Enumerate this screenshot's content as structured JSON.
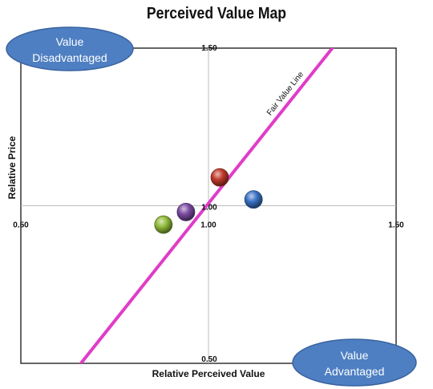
{
  "chart_data": {
    "type": "scatter",
    "title": "Perceived Value Map",
    "xlabel": "Relative Perceived Value",
    "ylabel": "Relative Price",
    "xlim": [
      0.5,
      1.5
    ],
    "ylim": [
      0.5,
      1.5
    ],
    "x_ticks": [
      "0.50",
      "1.00",
      "1.50"
    ],
    "y_ticks": [
      "0.50",
      "1.00",
      "1.50"
    ],
    "grid": false,
    "quadrant_lines": {
      "x": 1.0,
      "y": 1.0
    },
    "fair_value_line": {
      "label": "Fair Value Line",
      "color": "#e03cc8",
      "points": [
        [
          0.66,
          0.5
        ],
        [
          1.33,
          1.5
        ]
      ]
    },
    "points": [
      {
        "x": 1.03,
        "y": 1.09,
        "color": "#c0392b"
      },
      {
        "x": 1.12,
        "y": 1.02,
        "color": "#3a72c4"
      },
      {
        "x": 0.94,
        "y": 0.98,
        "color": "#7a4aa0"
      },
      {
        "x": 0.88,
        "y": 0.94,
        "color": "#8fba3a"
      }
    ],
    "annotations": [
      {
        "lines": [
          "Value",
          "Disadvantaged"
        ],
        "position": "top-left",
        "color": "#4e7fc2"
      },
      {
        "lines": [
          "Value",
          "Advantaged"
        ],
        "position": "bottom-right",
        "color": "#4e7fc2"
      }
    ]
  }
}
